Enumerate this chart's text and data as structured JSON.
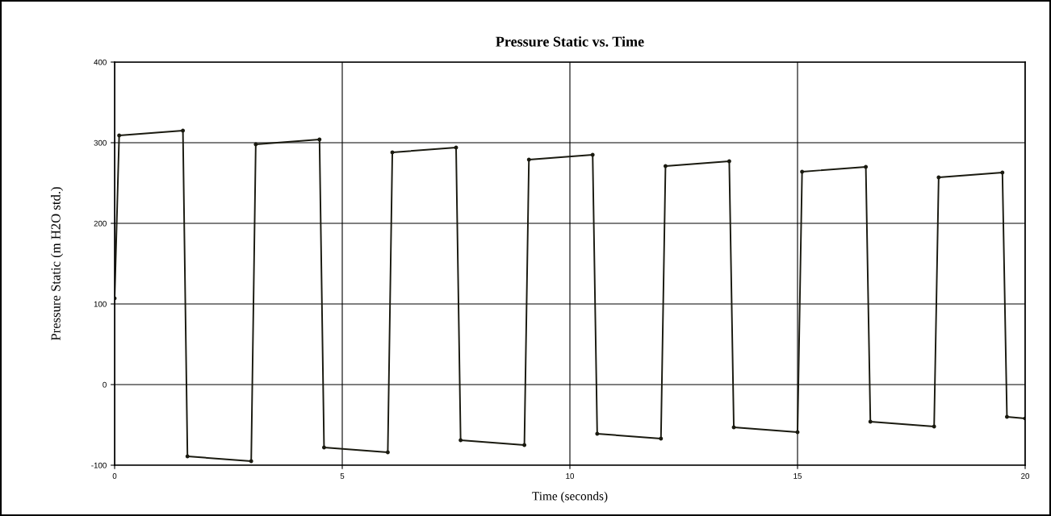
{
  "chart_data": {
    "type": "line",
    "title": "Pressure Static vs. Time",
    "xlabel": "Time (seconds)",
    "ylabel": "Pressure Static (m H2O std.)",
    "series": [
      {
        "color": "#1a1a10",
        "x": [
          0,
          0.1,
          1.5,
          1.6,
          3.0,
          3.1,
          4.5,
          4.6,
          6.0,
          6.1,
          7.5,
          7.6,
          9.0,
          9.1,
          10.5,
          10.6,
          12.0,
          12.1,
          13.5,
          13.6,
          15.0,
          15.1,
          16.5,
          16.6,
          18.0,
          18.1,
          19.5,
          19.6,
          20
        ],
        "values": [
          107,
          309,
          315,
          -89,
          -95,
          298,
          304,
          -78,
          -84,
          288,
          294,
          -69,
          -75,
          279,
          285,
          -61,
          -67,
          271,
          277,
          -53,
          -59,
          264,
          270,
          -46,
          -52,
          257,
          263,
          -40,
          -42
        ]
      }
    ],
    "xlim": [
      0,
      20
    ],
    "ylim": [
      -100,
      400
    ],
    "xticks": [
      0,
      5,
      10,
      15,
      20
    ],
    "yticks": [
      -100,
      0,
      100,
      200,
      300,
      400
    ],
    "grid": true,
    "legend": false,
    "marker": "circle",
    "line_style": "solid"
  }
}
